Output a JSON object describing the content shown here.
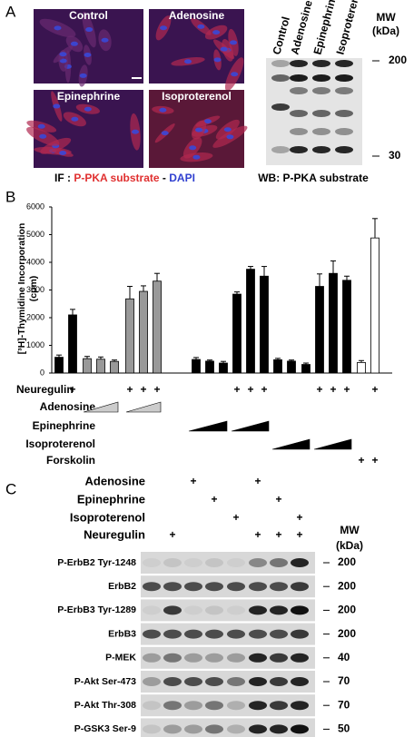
{
  "panel_a": {
    "letter": "A",
    "images": [
      "Control",
      "Adenosine",
      "Epinephrine",
      "Isoproterenol"
    ],
    "caption": {
      "prefix": "IF : ",
      "stain1": "P-PKA substrate",
      "separator": " - ",
      "stain2": "DAPI"
    },
    "blot": {
      "lanes": [
        "Control",
        "Adenosine",
        "Epinephrine",
        "Isoproterenol"
      ],
      "mw_title": "MW",
      "mw_unit": "(kDa)",
      "markers": [
        "200",
        "30"
      ],
      "caption": "WB: P-PKA substrate"
    }
  },
  "panel_b": {
    "letter": "B"
  },
  "chart_data": {
    "type": "bar",
    "ylabel": [
      "[³H]-Thymidine Incorporation",
      "(cpm)"
    ],
    "categories": [
      null,
      null,
      null,
      null,
      null,
      null,
      null,
      null,
      null,
      null,
      null,
      null,
      null,
      null,
      null,
      null,
      null,
      null,
      null,
      null,
      null,
      null
    ],
    "values": [
      570,
      2100,
      520,
      500,
      420,
      2680,
      2950,
      3320,
      490,
      430,
      360,
      2850,
      3750,
      3500,
      480,
      430,
      310,
      3130,
      3600,
      3350,
      380,
      4880
    ],
    "errors": [
      80,
      200,
      80,
      80,
      50,
      450,
      200,
      280,
      70,
      40,
      60,
      80,
      100,
      350,
      50,
      40,
      50,
      450,
      450,
      150,
      70,
      700
    ],
    "colors": [
      "#000000",
      "#000000",
      "#999999",
      "#999999",
      "#999999",
      "#999999",
      "#999999",
      "#999999",
      "#000000",
      "#000000",
      "#000000",
      "#000000",
      "#000000",
      "#000000",
      "#000000",
      "#000000",
      "#000000",
      "#000000",
      "#000000",
      "#000000",
      "#ffffff",
      "#ffffff"
    ],
    "ylim": [
      0,
      6000
    ],
    "yticks": [
      0,
      1000,
      2000,
      3000,
      4000,
      5000,
      6000
    ],
    "treatments": {
      "rows": [
        "Neuregulin",
        "Adenosine",
        "Epinephrine",
        "Isoproterenol",
        "Forskolin"
      ],
      "mark": "+"
    }
  },
  "panel_c": {
    "letter": "C",
    "treatments": [
      "Adenosine",
      "Epinephrine",
      "Isoproterenol",
      "Neuregulin"
    ],
    "mark": "+",
    "mw_title": "MW",
    "mw_unit": "(kDa)",
    "rows": [
      {
        "label": "P-ErbB2 Tyr-1248",
        "mw": "200"
      },
      {
        "label": "ErbB2",
        "mw": "200"
      },
      {
        "label": "P-ErbB3 Tyr-1289",
        "mw": "200"
      },
      {
        "label": "ErbB3",
        "mw": "200"
      },
      {
        "label": "P-MEK",
        "mw": "40"
      },
      {
        "label": "P-Akt Ser-473",
        "mw": "70"
      },
      {
        "label": "P-Akt Thr-308",
        "mw": "70"
      },
      {
        "label": "P-GSK3 Ser-9",
        "mw": "50"
      }
    ]
  }
}
